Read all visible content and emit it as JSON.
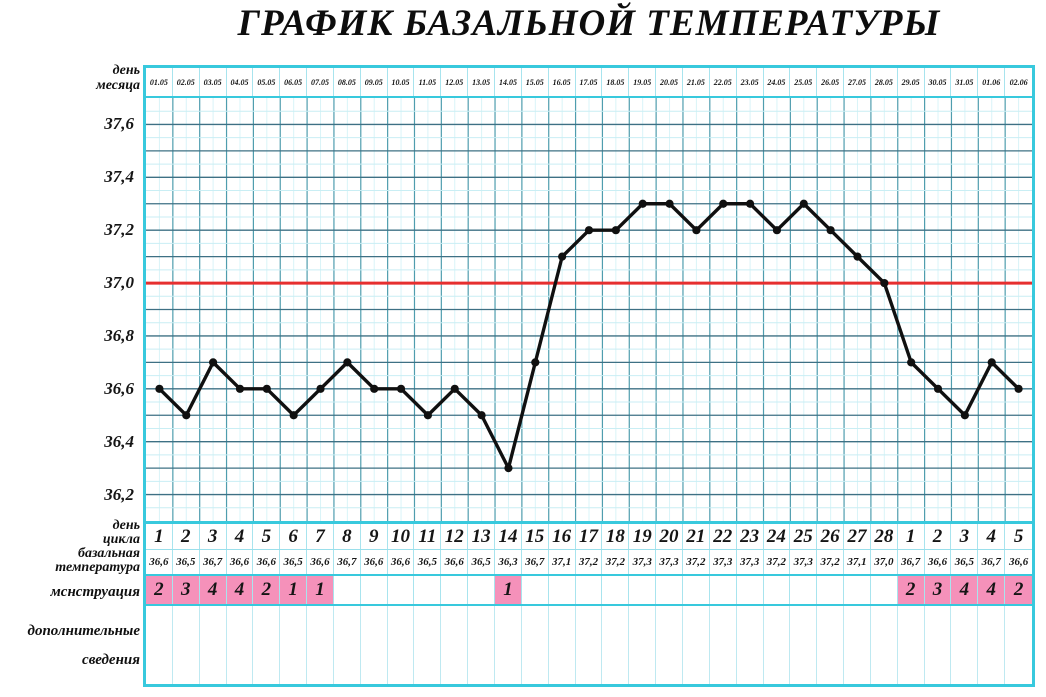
{
  "title": "ГРАФИК БАЗАЛЬНОЙ ТЕМПЕРАТУРЫ",
  "row_labels": {
    "day_of_month": "день\nмесяца",
    "cycle_day": "день\nцикла",
    "basal_temperature": "базальная\nтемпература",
    "menstruation": "мснструация",
    "additional_info": "дополнительные\nсведения"
  },
  "colors": {
    "border_cyan": "#38c9dd",
    "grid_dark": "#3e7084",
    "grid_light": "#c9eef4",
    "grid_vertical": "#4f9dae",
    "grid_vertical_light": "#d9f4f8",
    "cell_separator": "#a8e4ee",
    "reference_red": "#e62f2f",
    "menstruation_pink": "#f591ba",
    "line_black": "#101010"
  },
  "chart_data": {
    "type": "line",
    "title": "ГРАФИК БАЗАЛЬНОЙ ТЕМПЕРАТУРЫ",
    "x_dates": [
      "01.05",
      "02.05",
      "03.05",
      "04.05",
      "05.05",
      "06.05",
      "07.05",
      "08.05",
      "09.05",
      "10.05",
      "11.05",
      "12.05",
      "13.05",
      "14.05",
      "15.05",
      "16.05",
      "17.05",
      "18.05",
      "19.05",
      "20.05",
      "21.05",
      "22.05",
      "23.05",
      "24.05",
      "25.05",
      "26.05",
      "27.05",
      "28.05",
      "29.05",
      "30.05",
      "31.05",
      "01.06",
      "02.06"
    ],
    "cycle_days": [
      1,
      2,
      3,
      4,
      5,
      6,
      7,
      8,
      9,
      10,
      11,
      12,
      13,
      14,
      15,
      16,
      17,
      18,
      19,
      20,
      21,
      22,
      23,
      24,
      25,
      26,
      27,
      28,
      1,
      2,
      3,
      4,
      5
    ],
    "series": [
      {
        "name": "базальная температура",
        "values": [
          36.6,
          36.5,
          36.7,
          36.6,
          36.6,
          36.5,
          36.6,
          36.7,
          36.6,
          36.6,
          36.5,
          36.6,
          36.5,
          36.3,
          36.7,
          37.1,
          37.2,
          37.2,
          37.3,
          37.3,
          37.2,
          37.3,
          37.3,
          37.2,
          37.3,
          37.2,
          37.1,
          37.0,
          36.7,
          36.6,
          36.5,
          36.7,
          36.6
        ]
      }
    ],
    "temperature_labels": [
      "36,6",
      "36,5",
      "36,7",
      "36,6",
      "36,6",
      "36,5",
      "36,6",
      "36,7",
      "36,6",
      "36,6",
      "36,5",
      "36,6",
      "36,5",
      "36,3",
      "36,7",
      "37,1",
      "37,2",
      "37,2",
      "37,3",
      "37,3",
      "37,2",
      "37,3",
      "37,3",
      "37,2",
      "37,3",
      "37,2",
      "37,1",
      "37,0",
      "36,7",
      "36,6",
      "36,5",
      "36,7",
      "36,6"
    ],
    "menstruation": [
      2,
      3,
      4,
      4,
      2,
      1,
      1,
      null,
      null,
      null,
      null,
      null,
      null,
      1,
      null,
      null,
      null,
      null,
      null,
      null,
      null,
      null,
      null,
      null,
      null,
      null,
      null,
      null,
      2,
      3,
      4,
      4,
      2
    ],
    "y_axis": {
      "min": 36.1,
      "max": 37.7,
      "grid_step": 0.1,
      "tick_labels": [
        "37,6",
        "37,4",
        "37,2",
        "37,0",
        "36,8",
        "36,6",
        "36,4",
        "36,2"
      ]
    },
    "reference_line": {
      "value": 37.0
    },
    "grid": true,
    "legend_position": "none"
  }
}
